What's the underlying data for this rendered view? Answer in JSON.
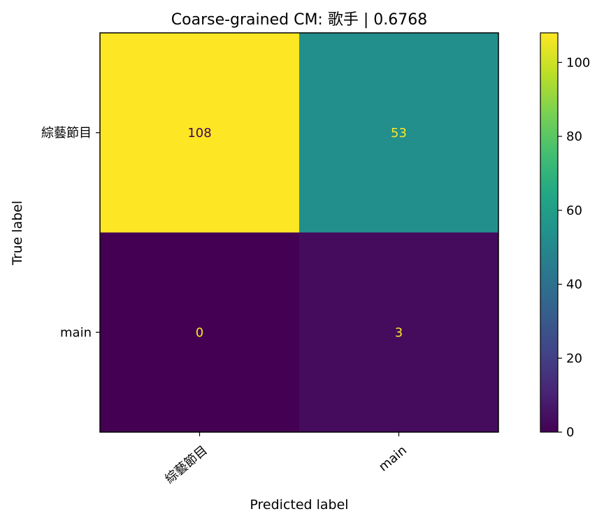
{
  "chart_data": {
    "type": "heatmap",
    "title": "Coarse-grained CM: 歌手 | 0.6768",
    "xlabel": "Predicted label",
    "ylabel": "True label",
    "row_labels": [
      "綜藝節目",
      "main"
    ],
    "col_labels": [
      "綜藝節目",
      "main"
    ],
    "values": [
      [
        108,
        53
      ],
      [
        0,
        3
      ]
    ],
    "colormap": "viridis",
    "colorbar": {
      "range": [
        0,
        108
      ],
      "ticks": [
        0,
        20,
        40,
        60,
        80,
        100
      ]
    },
    "xtick_rotation_deg": -40,
    "grid": false
  }
}
